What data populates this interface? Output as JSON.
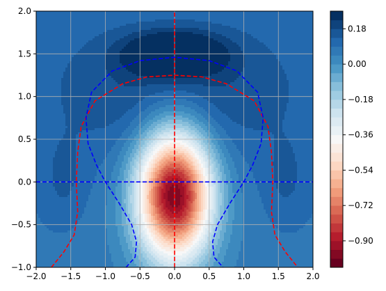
{
  "chart_data": {
    "type": "contour",
    "title": "",
    "xlabel": "",
    "ylabel": "",
    "xlim": [
      -2.0,
      2.0
    ],
    "ylim": [
      -1.0,
      2.0
    ],
    "grid": true,
    "colormap": "RdBu",
    "x_ticks": [
      -2.0,
      -1.5,
      -1.0,
      -0.5,
      0.0,
      0.5,
      1.0,
      1.5,
      2.0
    ],
    "x_tick_labels": [
      "−2.0",
      "−1.5",
      "−1.0",
      "−0.5",
      "0.0",
      "0.5",
      "1.0",
      "1.5",
      "2.0"
    ],
    "y_ticks": [
      -1.0,
      -0.5,
      0.0,
      0.5,
      1.0,
      1.5,
      2.0
    ],
    "y_tick_labels": [
      "−1.0",
      "−0.5",
      "0.0",
      "0.5",
      "1.0",
      "1.5",
      "2.0"
    ],
    "colorbar": {
      "vmin": -1.035,
      "vmax": 0.27,
      "levels": [
        -1.035,
        -0.99,
        -0.945,
        -0.9,
        -0.855,
        -0.81,
        -0.765,
        -0.72,
        -0.675,
        -0.63,
        -0.585,
        -0.54,
        -0.495,
        -0.45,
        -0.405,
        -0.36,
        -0.315,
        -0.27,
        -0.225,
        -0.18,
        -0.135,
        -0.09,
        -0.045,
        0.0,
        0.045,
        0.09,
        0.135,
        0.18,
        0.225,
        0.27
      ],
      "ticks": [
        -0.9,
        -0.72,
        -0.54,
        -0.36,
        -0.18,
        0.0,
        0.18
      ],
      "tick_labels": [
        "−0.90",
        "−0.72",
        "−0.54",
        "−0.36",
        "−0.18",
        "0.00",
        "0.18"
      ]
    },
    "contour_lines": [
      {
        "color": "#ff0000",
        "style": "dashed",
        "description": "zero contour of x-derivative",
        "points": [
          [
            0,
            -1
          ],
          [
            0,
            2
          ]
        ]
      },
      {
        "color": "#ff0000",
        "style": "dashed",
        "points": [
          [
            -1.78,
            -1
          ],
          [
            -1.6,
            -0.82
          ],
          [
            -1.45,
            -0.62
          ],
          [
            -1.4,
            -0.35
          ],
          [
            -1.42,
            0
          ],
          [
            -1.4,
            0.35
          ],
          [
            -1.35,
            0.65
          ],
          [
            -1.15,
            0.95
          ],
          [
            -0.75,
            1.15
          ],
          [
            -0.4,
            1.23
          ],
          [
            0,
            1.25
          ],
          [
            0.4,
            1.23
          ],
          [
            0.75,
            1.15
          ],
          [
            1.15,
            0.95
          ],
          [
            1.35,
            0.65
          ],
          [
            1.4,
            0.35
          ],
          [
            1.42,
            0
          ],
          [
            1.4,
            -0.35
          ],
          [
            1.45,
            -0.62
          ],
          [
            1.6,
            -0.82
          ],
          [
            1.78,
            -1
          ]
        ]
      },
      {
        "color": "#0000ff",
        "style": "dashed",
        "description": "zero contour of y-derivative",
        "points": [
          [
            -2,
            0
          ],
          [
            2,
            0
          ]
        ]
      },
      {
        "color": "#0000ff",
        "style": "dashed",
        "points": [
          [
            -0.7,
            -1
          ],
          [
            -0.57,
            -0.88
          ],
          [
            -0.55,
            -0.7
          ],
          [
            -0.62,
            -0.5
          ],
          [
            -0.8,
            -0.25
          ],
          [
            -1.0,
            0
          ],
          [
            -1.13,
            0.2
          ],
          [
            -1.25,
            0.45
          ],
          [
            -1.28,
            0.75
          ],
          [
            -1.2,
            1.05
          ],
          [
            -0.9,
            1.3
          ],
          [
            -0.5,
            1.42
          ],
          [
            0,
            1.46
          ],
          [
            0.5,
            1.42
          ],
          [
            0.9,
            1.3
          ],
          [
            1.2,
            1.05
          ],
          [
            1.28,
            0.75
          ],
          [
            1.25,
            0.45
          ],
          [
            1.13,
            0.2
          ],
          [
            1.0,
            0
          ],
          [
            0.8,
            -0.25
          ],
          [
            0.62,
            -0.5
          ],
          [
            0.55,
            -0.7
          ],
          [
            0.57,
            -0.88
          ],
          [
            0.7,
            -1
          ]
        ]
      }
    ]
  }
}
